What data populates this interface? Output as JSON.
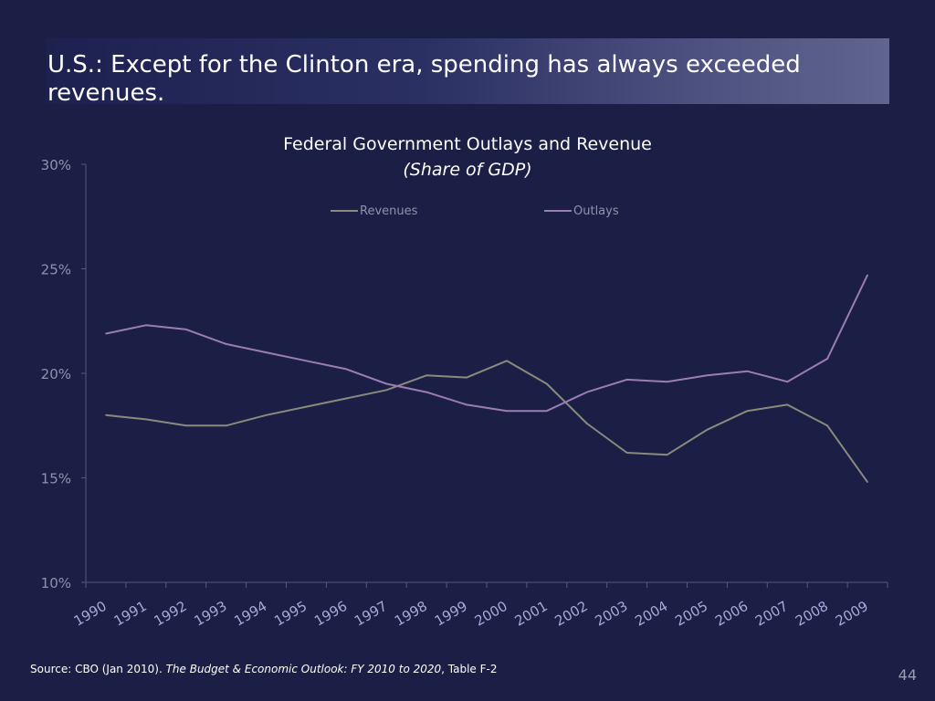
{
  "slide": {
    "title": "U.S.: Except for the Clinton era, spending has always exceeded revenues.",
    "page_number": "44"
  },
  "source": {
    "prefix": "Source: CBO (Jan 2010). ",
    "publication": "The Budget & Economic Outlook: FY 2010 to 2020",
    "suffix": ", Table F-2"
  },
  "colors": {
    "background": "#1b1f45",
    "revenues": "#8a8a7c",
    "outlays": "#9b7cb6",
    "axis": "#55597a"
  },
  "chart_data": {
    "type": "line",
    "title": "Federal Government Outlays and Revenue",
    "subtitle": "(Share of GDP)",
    "x": [
      "1990",
      "1991",
      "1992",
      "1993",
      "1994",
      "1995",
      "1996",
      "1997",
      "1998",
      "1999",
      "2000",
      "2001",
      "2002",
      "2003",
      "2004",
      "2005",
      "2006",
      "2007",
      "2008",
      "2009"
    ],
    "y_ticks": [
      "10%",
      "15%",
      "20%",
      "25%",
      "30%"
    ],
    "ylim": [
      10,
      30
    ],
    "grid": false,
    "legend_position": "top",
    "series": [
      {
        "name": "Revenues",
        "color": "#8a8a7c",
        "values": [
          18.0,
          17.8,
          17.5,
          17.5,
          18.0,
          18.4,
          18.8,
          19.2,
          19.9,
          19.8,
          20.6,
          19.5,
          17.6,
          16.2,
          16.1,
          17.3,
          18.2,
          18.5,
          17.5,
          14.8
        ]
      },
      {
        "name": "Outlays",
        "color": "#9b7cb6",
        "values": [
          21.9,
          22.3,
          22.1,
          21.4,
          21.0,
          20.6,
          20.2,
          19.5,
          19.1,
          18.5,
          18.2,
          18.2,
          19.1,
          19.7,
          19.6,
          19.9,
          20.1,
          19.6,
          20.7,
          24.7
        ]
      }
    ]
  }
}
